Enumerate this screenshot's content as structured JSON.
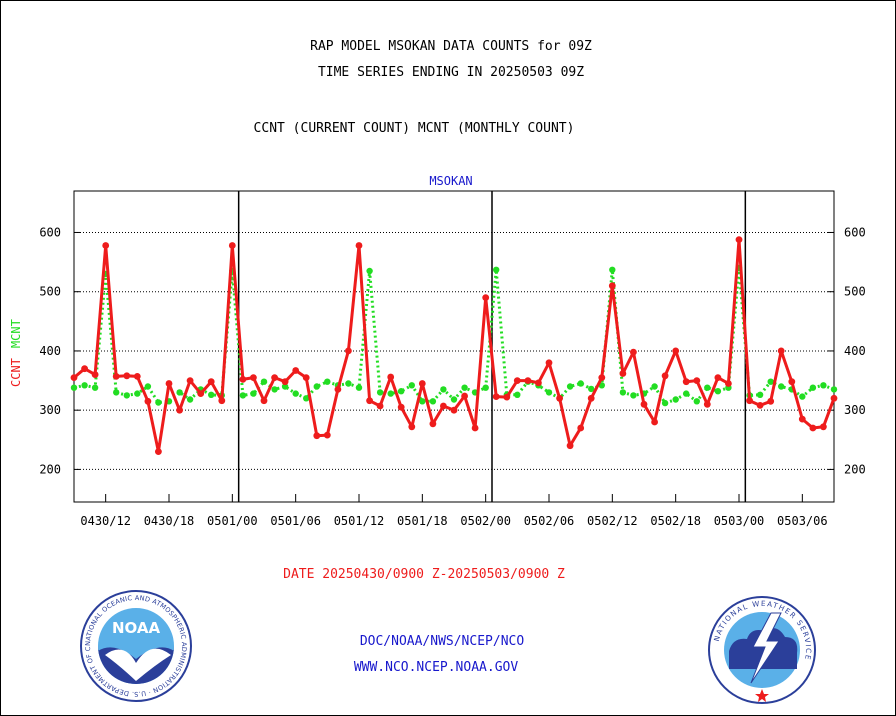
{
  "header": {
    "line1": "RAP MODEL MSOKAN DATA COUNTS for 09Z",
    "line2": "TIME SERIES ENDING IN 20250503 09Z",
    "line3": "CCNT (CURRENT COUNT) MCNT (MONTHLY COUNT)"
  },
  "footer": {
    "date_range": "DATE 20250430/0900 Z-20250503/0900 Z",
    "link1": "DOC/NOAA/NWS/NCEP/NCO",
    "link2": "WWW.NCO.NCEP.NOAA.GOV"
  },
  "logos": {
    "left_text": "NOAA",
    "left_ring": "NATIONAL OCEANIC AND ATMOSPHERIC ADMINISTRATION · U.S. DEPARTMENT OF COMMERCE",
    "right_ring": "NATIONAL WEATHER SERVICE"
  },
  "colors": {
    "ccnt": "#ee1c1c",
    "mcnt": "#22dd22",
    "title": "#1818cc",
    "ring_blue": "#2b3f9a",
    "sky_blue": "#5ab0e8"
  },
  "chart_data": {
    "type": "line",
    "title": "MSOKAN",
    "ylabel_series": [
      "CCNT",
      "MCNT"
    ],
    "ylim": [
      145,
      670
    ],
    "yticks": [
      200,
      300,
      400,
      500,
      600
    ],
    "grid": "horizontal dotted",
    "x_tick_labels": [
      "0430/12",
      "0430/18",
      "0501/00",
      "0501/06",
      "0501/12",
      "0501/18",
      "0502/00",
      "0502/06",
      "0502/12",
      "0502/18",
      "0503/00",
      "0503/06"
    ],
    "x_tick_hours": [
      3,
      9,
      15,
      21,
      27,
      33,
      39,
      45,
      51,
      57,
      63,
      69
    ],
    "day_boundary_hours": [
      15.6,
      39.6,
      63.6
    ],
    "x_range_hours": [
      0,
      72
    ],
    "x_unit": "hours since 20250430/0900 Z",
    "series": [
      {
        "name": "CCNT",
        "values": [
          355,
          370,
          360,
          578,
          357,
          358,
          357,
          315,
          230,
          345,
          300,
          350,
          328,
          348,
          316,
          578,
          352,
          355,
          316,
          355,
          348,
          367,
          355,
          257,
          258,
          335,
          400,
          578,
          316,
          307,
          356,
          305,
          272,
          345,
          277,
          307,
          300,
          324,
          270,
          490,
          323,
          322,
          350,
          350,
          346,
          380,
          320,
          240,
          270,
          320,
          355,
          510,
          362,
          398,
          310,
          280,
          358,
          400,
          348,
          350,
          310,
          355,
          345,
          588,
          316,
          308,
          315,
          400,
          348,
          285,
          270,
          272,
          320
        ],
        "x_start": 0,
        "x_step": 1
      },
      {
        "name": "MCNT",
        "values": [
          338,
          342,
          338,
          530,
          330,
          325,
          328,
          340,
          313,
          315,
          330,
          318,
          335,
          326,
          325,
          535,
          325,
          328,
          348,
          335,
          340,
          328,
          320,
          340,
          348,
          342,
          345,
          338,
          535,
          330,
          328,
          332,
          342,
          315,
          315,
          335,
          318,
          338,
          330,
          338,
          537,
          326,
          326,
          348,
          342,
          330,
          320,
          340,
          345,
          336,
          342,
          537,
          330,
          325,
          328,
          340,
          312,
          318,
          328,
          315,
          338,
          332,
          338,
          540,
          325,
          326,
          348,
          340,
          335,
          323,
          338,
          342,
          335
        ],
        "x_start": 0,
        "x_step": 1
      }
    ]
  }
}
